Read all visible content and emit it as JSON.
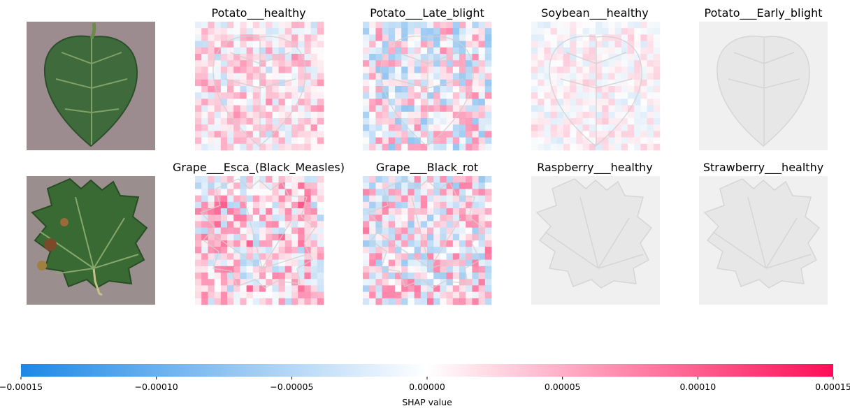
{
  "chart_data": {
    "type": "heatmap",
    "rows": [
      {
        "input_image": "potato-leaf-photo",
        "panels": [
          {
            "title": "Potato___healthy",
            "intensity": 0.35,
            "bias": 0.35,
            "seed": 11
          },
          {
            "title": "Potato___Late_blight",
            "intensity": 0.55,
            "bias": 0.0,
            "seed": 23
          },
          {
            "title": "Soybean___healthy",
            "intensity": 0.2,
            "bias": 0.1,
            "seed": 37
          },
          {
            "title": "Potato___Early_blight",
            "intensity": 0.0,
            "bias": 0.0,
            "seed": 41
          }
        ]
      },
      {
        "input_image": "grape-leaf-photo",
        "panels": [
          {
            "title": "Grape___Esca_(Black_Measles)",
            "intensity": 0.5,
            "bias": 0.55,
            "seed": 53
          },
          {
            "title": "Grape___Black_rot",
            "intensity": 0.55,
            "bias": 0.2,
            "seed": 67
          },
          {
            "title": "Raspberry___healthy",
            "intensity": 0.0,
            "bias": 0.0,
            "seed": 71
          },
          {
            "title": "Strawberry___healthy",
            "intensity": 0.0,
            "bias": 0.0,
            "seed": 83
          }
        ]
      }
    ],
    "colorbar": {
      "label": "SHAP value",
      "min": -0.00015,
      "max": 0.00015,
      "ticks": [
        "−0.00015",
        "−0.00010",
        "−0.00005",
        "0.00000",
        "0.00005",
        "0.00010",
        "0.00015"
      ],
      "tick_values": [
        -0.00015,
        -0.0001,
        -5e-05,
        0,
        5e-05,
        0.0001,
        0.00015
      ],
      "color_negative": "#1e88e5",
      "color_zero": "#ffffff",
      "color_positive": "#ff0d57"
    }
  }
}
